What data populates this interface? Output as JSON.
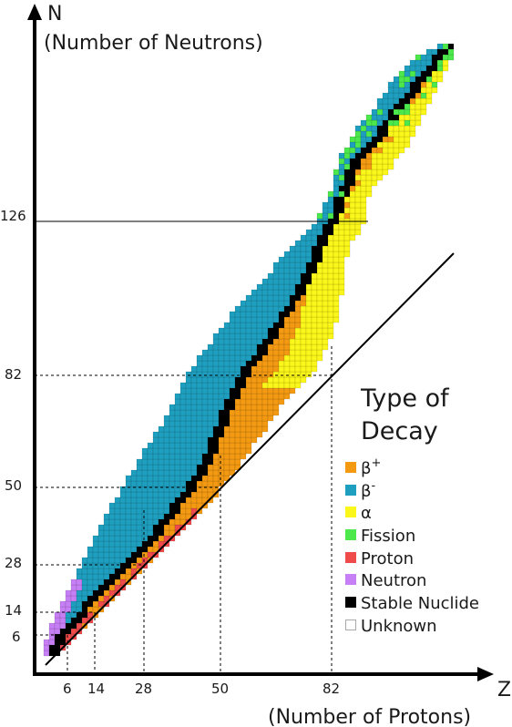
{
  "axes": {
    "y_letter": "N",
    "y_title": "(Number of Neutrons)",
    "x_letter": "Z",
    "x_title": "(Number of Protons)",
    "y_ticks": [
      "126",
      "82",
      "50",
      "28",
      "14",
      "6"
    ],
    "x_ticks": [
      "6",
      "14",
      "28",
      "50",
      "82"
    ]
  },
  "magic_numbers": [
    6,
    14,
    28,
    50,
    82,
    126
  ],
  "legend": {
    "title_line1": "Type of",
    "title_line2": "Decay",
    "items": [
      {
        "key": "beta_plus",
        "label": "β",
        "sup": "+",
        "color": "#f39a12"
      },
      {
        "key": "beta_minus",
        "label": "β",
        "sup": "-",
        "color": "#1f9fbf"
      },
      {
        "key": "alpha",
        "label": "α",
        "sup": "",
        "color": "#fbf71a"
      },
      {
        "key": "fission",
        "label": "Fission",
        "sup": "",
        "color": "#4ce84c"
      },
      {
        "key": "proton",
        "label": "Proton",
        "sup": "",
        "color": "#ef4b4b"
      },
      {
        "key": "neutron",
        "label": "Neutron",
        "sup": "",
        "color": "#c77ff5"
      },
      {
        "key": "stable",
        "label": "Stable Nuclide",
        "sup": "",
        "color": "#000000"
      },
      {
        "key": "unknown",
        "label": "Unknown",
        "sup": "",
        "color": "#ffffff"
      }
    ]
  }
}
